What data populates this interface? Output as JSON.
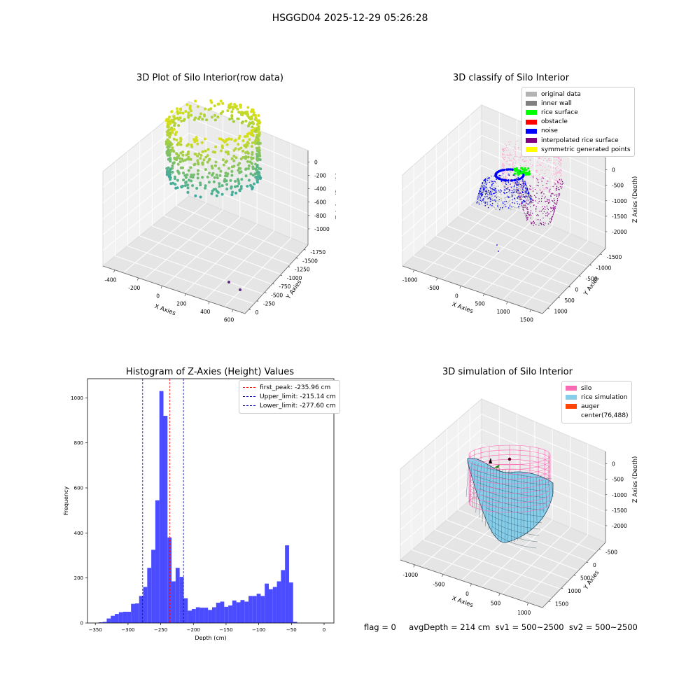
{
  "suptitle": "HSGGD04 2025-12-29 05:26:28",
  "colors": {
    "original": "#b3b3b3",
    "inner_wall": "#808080",
    "rice_surface": "#00ff00",
    "obstacle": "#ff0000",
    "noise": "#0000ff",
    "interpolated": "#800080",
    "symmetric": "#ffff00",
    "silo": "#ff69b4",
    "rice_sim": "#87ceeb",
    "auger": "#ff4500",
    "hist_bar": "#4b4bff",
    "first_peak_line": "#ff0000",
    "limit_line": "#0000aa"
  },
  "panel1": {
    "title": "3D Plot of Silo Interior(row data)",
    "xlabel": "X Axies",
    "ylabel": "Y Axies",
    "zlabel": "Z Axies (Depth)",
    "xticks": [
      "-400",
      "-200",
      "0",
      "200",
      "400",
      "600"
    ],
    "yticks": [
      "0",
      "-250",
      "-500",
      "-750",
      "-1000",
      "-1250",
      "-1500",
      "-1750"
    ],
    "zticks": [
      "0",
      "-200",
      "-400",
      "-600",
      "-800",
      "-1000"
    ]
  },
  "panel2": {
    "title": "3D classify of Silo Interior",
    "xlabel": "X Axies",
    "ylabel": "Y Axies",
    "zlabel": "Z Axies (Depth)",
    "xticks": [
      "-1000",
      "-500",
      "0",
      "500",
      "1000",
      "1500"
    ],
    "yticks": [
      "1000",
      "500",
      "0",
      "-500",
      "-1000",
      "-1500"
    ],
    "zticks": [
      "0",
      "-500",
      "-1000",
      "-1500",
      "-2000"
    ],
    "legend": [
      {
        "label": "original data",
        "color": "#b3b3b3"
      },
      {
        "label": "inner wall",
        "color": "#808080"
      },
      {
        "label": "rice surface",
        "color": "#00ff00"
      },
      {
        "label": "obstacle",
        "color": "#ff0000"
      },
      {
        "label": "noise",
        "color": "#0000ff"
      },
      {
        "label": "interpolated rice surface",
        "color": "#800080"
      },
      {
        "label": "symmetric generated points",
        "color": "#ffff00"
      }
    ]
  },
  "panel4": {
    "title": "3D simulation of Silo Interior",
    "xlabel": "X Axies",
    "ylabel": "Y Axies",
    "zlabel": "Z Axies (Depth)",
    "xticks": [
      "-1000",
      "-500",
      "0",
      "500",
      "1000"
    ],
    "yticks": [
      "1500",
      "1000",
      "500",
      "0",
      "-500"
    ],
    "zticks": [
      "0",
      "-500",
      "-1000",
      "-1500",
      "-2000"
    ],
    "legend": [
      {
        "label": "silo",
        "color": "#ff69b4"
      },
      {
        "label": "rice simulation",
        "color": "#87ceeb"
      },
      {
        "label": "auger",
        "color": "#ff4500"
      },
      {
        "label": "center(76,488)",
        "color": ""
      }
    ]
  },
  "status": "flag = 0     avgDepth = 214 cm  sv1 = 500~2500  sv2 = 500~2500",
  "chart_data": {
    "type": "bar",
    "title": "Histogram of Z-Axies (Height) Values",
    "xlabel": "Depth (cm)",
    "ylabel": "Frequency",
    "xlim": [
      -362,
      15
    ],
    "ylim": [
      0,
      1085
    ],
    "xticks": [
      -350,
      -300,
      -250,
      -200,
      -150,
      -100,
      -50,
      0
    ],
    "yticks": [
      0,
      200,
      400,
      600,
      800,
      1000
    ],
    "bin_width": 6.2,
    "bin_start": -345,
    "values": [
      3,
      5,
      20,
      32,
      40,
      48,
      50,
      50,
      85,
      87,
      120,
      160,
      245,
      325,
      545,
      1030,
      920,
      380,
      185,
      245,
      205,
      110,
      55,
      62,
      70,
      68,
      68,
      58,
      70,
      90,
      95,
      72,
      78,
      100,
      92,
      102,
      95,
      120,
      120,
      130,
      120,
      175,
      150,
      160,
      185,
      235,
      345,
      180,
      5
    ],
    "lines": [
      {
        "label": "first_peak: -235.96 cm",
        "x": -235.96,
        "color": "#ff0000"
      },
      {
        "label": "Upper_limit: -215.14 cm",
        "x": -215.14,
        "color": "#0000aa"
      },
      {
        "label": "Lower_limit: -277.60 cm",
        "x": -277.6,
        "color": "#0000aa"
      }
    ]
  }
}
